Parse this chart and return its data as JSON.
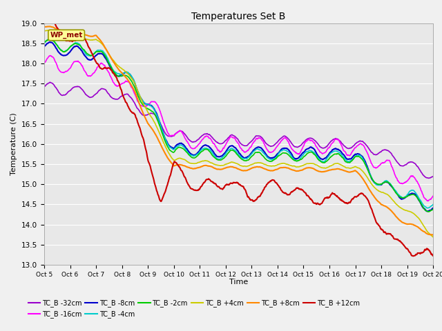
{
  "title": "Temperatures Set B",
  "xlabel": "Time",
  "ylabel": "Temperature (C)",
  "ylim": [
    13.0,
    19.0
  ],
  "yticks": [
    13.0,
    13.5,
    14.0,
    14.5,
    15.0,
    15.5,
    16.0,
    16.5,
    17.0,
    17.5,
    18.0,
    18.5,
    19.0
  ],
  "xtick_labels": [
    "Oct 5",
    "Oct 6",
    "Oct 7",
    "Oct 8",
    "Oct 9",
    "Oct 10",
    "Oct 11",
    "Oct 12",
    "Oct 13",
    "Oct 14",
    "Oct 15",
    "Oct 16",
    "Oct 17",
    "Oct 18",
    "Oct 19",
    "Oct 20"
  ],
  "series_order": [
    "TC_B -32cm",
    "TC_B -16cm",
    "TC_B -8cm",
    "TC_B -4cm",
    "TC_B -2cm",
    "TC_B +4cm",
    "TC_B +8cm",
    "TC_B +12cm"
  ],
  "series_colors": {
    "TC_B -32cm": "#9900cc",
    "TC_B -16cm": "#ff00ff",
    "TC_B -8cm": "#0000cc",
    "TC_B -4cm": "#00cccc",
    "TC_B -2cm": "#00cc00",
    "TC_B +4cm": "#cccc00",
    "TC_B +8cm": "#ff8800",
    "TC_B +12cm": "#cc0000"
  },
  "series_lw": {
    "TC_B -32cm": 1.2,
    "TC_B -16cm": 1.2,
    "TC_B -8cm": 1.5,
    "TC_B -4cm": 1.2,
    "TC_B -2cm": 1.2,
    "TC_B +4cm": 1.2,
    "TC_B +8cm": 1.5,
    "TC_B +12cm": 1.5
  },
  "background_color": "#e8e8e8",
  "plot_bg_color": "#e8e8e8",
  "fig_bg_color": "#f0f0f0",
  "grid_color": "#ffffff",
  "wp_met_text_color": "#8b0000",
  "wp_met_box_color": "#ffff99",
  "wp_met_edge_color": "#999900",
  "n_points": 900
}
